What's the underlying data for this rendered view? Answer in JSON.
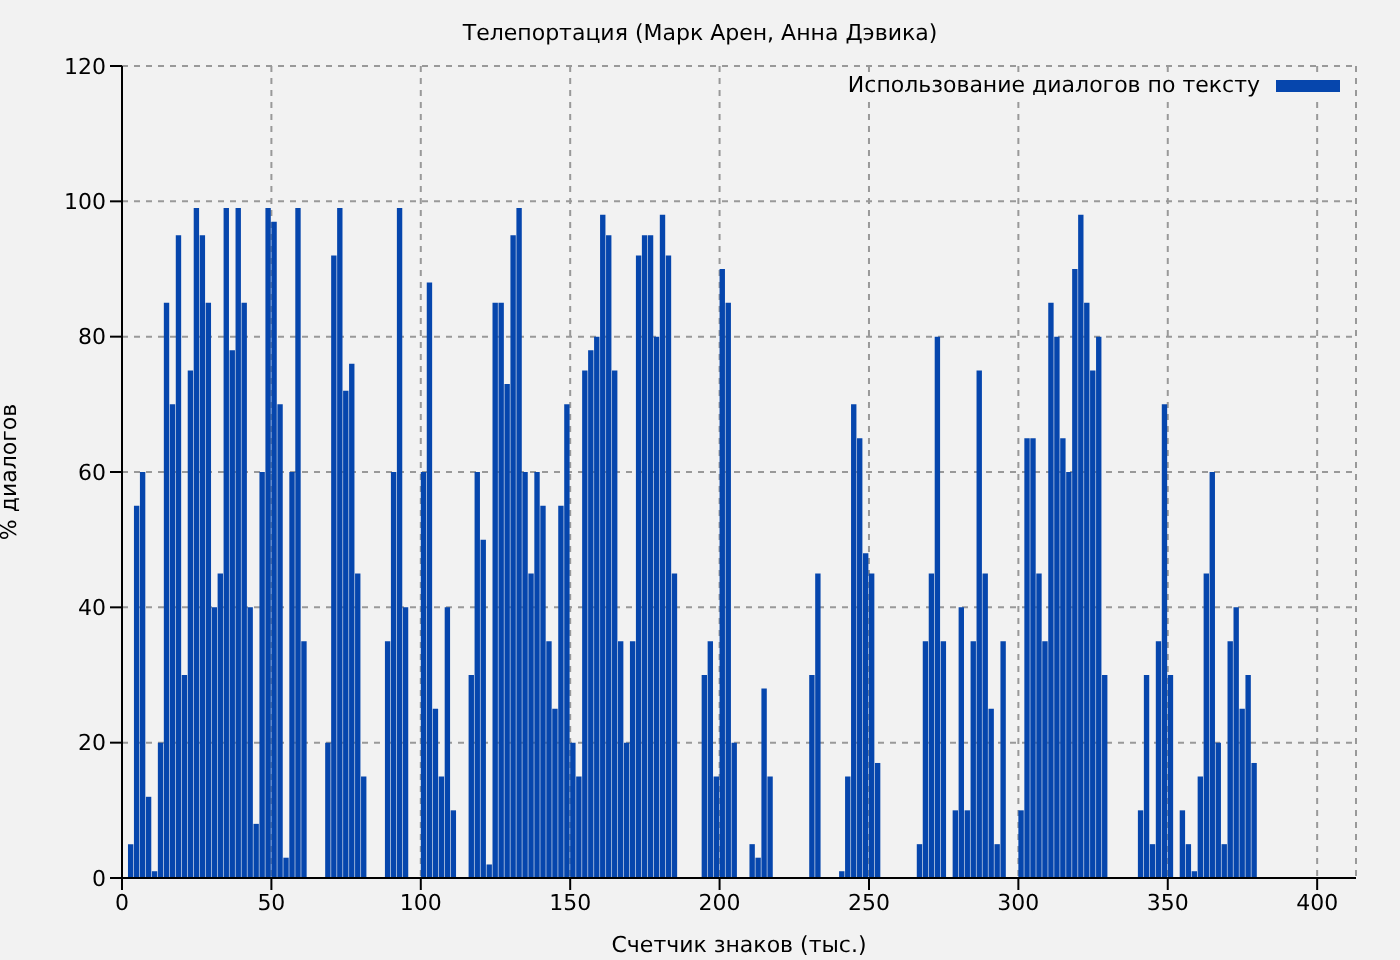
{
  "chart_data": {
    "type": "histogram",
    "title": "Телепортация (Марк Арен, Анна Дэвика)",
    "xlabel": "Счетчик знаков (тыс.)",
    "ylabel": "% диалогов",
    "bins": [
      0,
      2,
      4,
      6,
      8,
      10,
      12,
      14,
      16,
      18,
      20,
      22,
      24,
      26,
      28,
      30,
      32,
      34,
      36,
      38,
      40,
      42,
      44,
      46,
      48,
      50,
      52,
      54,
      56,
      58,
      60,
      62,
      64,
      66,
      68,
      70,
      72,
      74,
      76,
      78,
      80,
      82,
      84,
      86,
      88,
      90,
      92,
      94,
      96,
      98,
      100,
      102,
      104,
      106,
      108,
      110,
      112,
      114,
      116,
      118,
      120,
      122,
      124,
      126,
      128,
      130,
      132,
      134,
      136,
      138,
      140,
      142,
      144,
      146,
      148,
      150,
      152,
      154,
      156,
      158,
      160,
      162,
      164,
      166,
      168,
      170,
      172,
      174,
      176,
      178,
      180,
      182,
      184,
      186,
      188,
      190,
      192,
      194,
      196,
      198,
      200,
      202,
      204,
      206,
      208,
      210,
      212,
      214,
      216,
      218,
      220,
      222,
      224,
      226,
      228,
      230,
      232,
      234,
      236,
      238,
      240,
      242,
      244,
      246,
      248,
      250,
      252,
      254,
      256,
      258,
      260,
      262,
      264,
      266,
      268,
      270,
      272,
      274,
      276,
      278,
      280,
      282,
      284,
      286,
      288,
      290,
      292,
      294,
      296,
      298,
      300,
      302,
      304,
      306,
      308,
      310,
      312,
      314,
      316,
      318,
      320,
      322,
      324,
      326,
      328,
      330,
      332,
      334,
      336,
      338,
      340,
      342,
      344,
      346,
      348,
      350,
      352,
      354,
      356,
      358,
      360,
      362,
      364,
      366,
      368,
      370,
      372,
      374,
      376,
      378,
      380
    ],
    "series": [
      {
        "name": "Использование диалогов по тексту",
        "color": "#0646ad",
        "values": [
          0,
          5,
          55,
          60,
          12,
          1,
          20,
          85,
          70,
          95,
          30,
          75,
          99,
          95,
          85,
          40,
          45,
          99,
          78,
          99,
          85,
          40,
          8,
          60,
          99,
          97,
          70,
          3,
          60,
          99,
          35,
          0,
          0,
          0,
          20,
          92,
          99,
          72,
          76,
          45,
          15,
          0,
          0,
          0,
          35,
          60,
          99,
          40,
          0,
          0,
          60,
          88,
          25,
          15,
          40,
          10,
          0,
          0,
          30,
          60,
          50,
          2,
          85,
          85,
          73,
          95,
          99,
          60,
          45,
          60,
          55,
          35,
          25,
          55,
          70,
          20,
          15,
          75,
          78,
          80,
          98,
          95,
          75,
          35,
          20,
          35,
          92,
          95,
          95,
          80,
          98,
          92,
          45,
          0,
          0,
          0,
          0,
          30,
          35,
          15,
          90,
          85,
          20,
          0,
          0,
          5,
          3,
          28,
          15,
          0,
          0,
          0,
          0,
          0,
          0,
          30,
          45,
          0,
          0,
          0,
          1,
          15,
          70,
          65,
          48,
          45,
          17,
          0,
          0,
          0,
          0,
          0,
          0,
          5,
          35,
          45,
          80,
          35,
          0,
          10,
          40,
          10,
          35,
          75,
          45,
          25,
          5,
          35,
          0,
          0,
          10,
          65,
          65,
          45,
          35,
          85,
          80,
          65,
          60,
          90,
          98,
          85,
          75,
          80,
          30,
          0,
          0,
          0,
          0,
          0,
          10,
          30,
          5,
          35,
          70,
          30,
          0,
          10,
          5,
          1,
          15,
          45,
          60,
          20,
          5,
          35,
          40,
          25,
          30,
          17
        ]
      }
    ],
    "xlim": [
      0,
      413
    ],
    "xticks": [
      0,
      50,
      100,
      150,
      200,
      250,
      300,
      350,
      400
    ],
    "ylim": [
      0,
      120
    ],
    "yticks": [
      0,
      20,
      40,
      60,
      80,
      100,
      120
    ],
    "grid": true,
    "legend": "top right"
  }
}
